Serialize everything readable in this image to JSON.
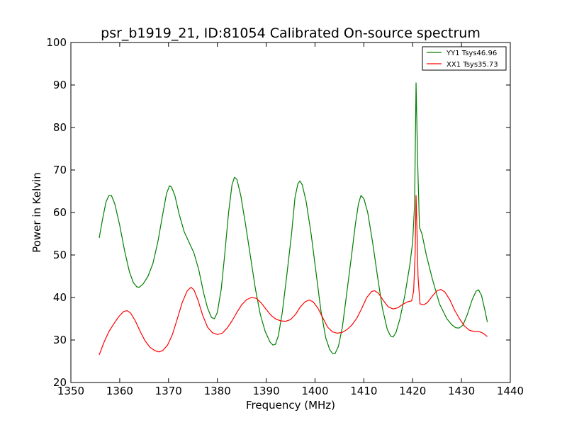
{
  "chart_data": {
    "type": "line",
    "title": "psr_b1919_21, ID:81054 Calibrated On-source spectrum",
    "xlabel": "Frequency (MHz)",
    "ylabel": "Power in Kelvin",
    "xlim": [
      1350,
      1440
    ],
    "ylim": [
      20,
      100
    ],
    "xticks": [
      1350,
      1360,
      1370,
      1380,
      1390,
      1400,
      1410,
      1420,
      1430,
      1440
    ],
    "yticks": [
      20,
      30,
      40,
      50,
      60,
      70,
      80,
      90,
      100
    ],
    "grid": false,
    "legend_position": "top-right",
    "series": [
      {
        "name": "YY1 Tsys46.96",
        "color": "#008000",
        "points": [
          [
            1355.8,
            54.0
          ],
          [
            1356.5,
            58.5
          ],
          [
            1357.2,
            62.5
          ],
          [
            1357.8,
            64.0
          ],
          [
            1358.3,
            64.0
          ],
          [
            1359.0,
            62.0
          ],
          [
            1360.0,
            57.0
          ],
          [
            1361.0,
            51.0
          ],
          [
            1362.0,
            46.0
          ],
          [
            1362.8,
            43.5
          ],
          [
            1363.5,
            42.5
          ],
          [
            1364.0,
            42.4
          ],
          [
            1364.8,
            43.2
          ],
          [
            1365.8,
            45.0
          ],
          [
            1366.8,
            48.0
          ],
          [
            1367.8,
            53.0
          ],
          [
            1368.8,
            59.5
          ],
          [
            1369.6,
            64.5
          ],
          [
            1370.2,
            66.3
          ],
          [
            1370.6,
            66.0
          ],
          [
            1371.3,
            64.0
          ],
          [
            1372.2,
            59.5
          ],
          [
            1373.2,
            55.5
          ],
          [
            1374.2,
            53.0
          ],
          [
            1375.2,
            50.5
          ],
          [
            1376.2,
            46.5
          ],
          [
            1377.2,
            41.0
          ],
          [
            1378.0,
            37.5
          ],
          [
            1378.8,
            35.3
          ],
          [
            1379.4,
            35.0
          ],
          [
            1380.0,
            36.5
          ],
          [
            1380.8,
            42.0
          ],
          [
            1381.5,
            50.0
          ],
          [
            1382.3,
            60.0
          ],
          [
            1383.0,
            66.5
          ],
          [
            1383.5,
            68.3
          ],
          [
            1384.0,
            67.8
          ],
          [
            1384.8,
            64.0
          ],
          [
            1385.8,
            57.0
          ],
          [
            1386.8,
            49.5
          ],
          [
            1387.8,
            42.0
          ],
          [
            1388.8,
            36.0
          ],
          [
            1389.8,
            32.0
          ],
          [
            1390.8,
            29.5
          ],
          [
            1391.4,
            28.8
          ],
          [
            1391.9,
            29.0
          ],
          [
            1392.5,
            31.0
          ],
          [
            1393.3,
            36.5
          ],
          [
            1394.2,
            45.0
          ],
          [
            1395.2,
            55.0
          ],
          [
            1395.9,
            63.5
          ],
          [
            1396.5,
            66.8
          ],
          [
            1396.9,
            67.4
          ],
          [
            1397.4,
            66.5
          ],
          [
            1398.2,
            62.5
          ],
          [
            1399.2,
            55.0
          ],
          [
            1400.2,
            46.0
          ],
          [
            1401.2,
            37.0
          ],
          [
            1402.2,
            30.5
          ],
          [
            1403.0,
            27.8
          ],
          [
            1403.6,
            26.8
          ],
          [
            1404.1,
            26.8
          ],
          [
            1404.8,
            28.5
          ],
          [
            1405.6,
            33.0
          ],
          [
            1406.5,
            41.0
          ],
          [
            1407.5,
            50.0
          ],
          [
            1408.3,
            57.5
          ],
          [
            1408.9,
            62.0
          ],
          [
            1409.4,
            64.0
          ],
          [
            1410.0,
            63.3
          ],
          [
            1410.8,
            60.0
          ],
          [
            1411.8,
            53.0
          ],
          [
            1412.8,
            45.0
          ],
          [
            1413.8,
            37.5
          ],
          [
            1414.8,
            32.5
          ],
          [
            1415.5,
            30.9
          ],
          [
            1416.0,
            30.7
          ],
          [
            1416.6,
            31.8
          ],
          [
            1417.4,
            35.0
          ],
          [
            1418.4,
            40.5
          ],
          [
            1419.4,
            47.5
          ],
          [
            1420.0,
            53.0
          ],
          [
            1420.4,
            62.0
          ],
          [
            1420.7,
            90.5
          ],
          [
            1421.0,
            73.0
          ],
          [
            1421.4,
            56.5
          ],
          [
            1421.9,
            55.0
          ],
          [
            1422.8,
            50.0
          ],
          [
            1424.0,
            44.5
          ],
          [
            1425.5,
            38.5
          ],
          [
            1427.0,
            35.0
          ],
          [
            1428.0,
            33.6
          ],
          [
            1428.8,
            32.9
          ],
          [
            1429.5,
            32.8
          ],
          [
            1430.3,
            33.5
          ],
          [
            1431.2,
            36.0
          ],
          [
            1432.2,
            39.5
          ],
          [
            1433.0,
            41.5
          ],
          [
            1433.5,
            41.8
          ],
          [
            1434.1,
            40.5
          ],
          [
            1434.8,
            37.0
          ],
          [
            1435.3,
            34.2
          ]
        ]
      },
      {
        "name": "XX1 Tsys35.73",
        "color": "#ff0000",
        "points": [
          [
            1355.8,
            26.5
          ],
          [
            1356.8,
            29.5
          ],
          [
            1357.8,
            32.0
          ],
          [
            1358.8,
            33.8
          ],
          [
            1359.8,
            35.5
          ],
          [
            1360.8,
            36.7
          ],
          [
            1361.5,
            36.9
          ],
          [
            1362.2,
            36.4
          ],
          [
            1363.2,
            34.5
          ],
          [
            1364.2,
            32.0
          ],
          [
            1365.2,
            29.8
          ],
          [
            1366.2,
            28.3
          ],
          [
            1367.2,
            27.5
          ],
          [
            1368.0,
            27.2
          ],
          [
            1368.8,
            27.5
          ],
          [
            1369.8,
            28.8
          ],
          [
            1370.8,
            31.3
          ],
          [
            1371.8,
            35.0
          ],
          [
            1372.8,
            38.8
          ],
          [
            1373.8,
            41.5
          ],
          [
            1374.6,
            42.4
          ],
          [
            1375.2,
            41.8
          ],
          [
            1376.0,
            39.5
          ],
          [
            1377.0,
            35.8
          ],
          [
            1378.0,
            33.0
          ],
          [
            1379.0,
            31.7
          ],
          [
            1380.0,
            31.3
          ],
          [
            1381.0,
            31.6
          ],
          [
            1382.0,
            32.8
          ],
          [
            1383.0,
            34.5
          ],
          [
            1384.0,
            36.5
          ],
          [
            1385.0,
            38.3
          ],
          [
            1386.0,
            39.5
          ],
          [
            1387.0,
            40.0
          ],
          [
            1388.0,
            39.8
          ],
          [
            1389.0,
            38.7
          ],
          [
            1390.0,
            37.2
          ],
          [
            1391.0,
            35.8
          ],
          [
            1392.0,
            34.9
          ],
          [
            1393.0,
            34.5
          ],
          [
            1394.0,
            34.4
          ],
          [
            1395.0,
            34.8
          ],
          [
            1396.0,
            36.0
          ],
          [
            1397.0,
            37.8
          ],
          [
            1398.0,
            39.0
          ],
          [
            1398.8,
            39.4
          ],
          [
            1399.6,
            39.0
          ],
          [
            1400.6,
            37.5
          ],
          [
            1401.6,
            35.2
          ],
          [
            1402.6,
            33.0
          ],
          [
            1403.6,
            31.9
          ],
          [
            1404.6,
            31.6
          ],
          [
            1405.6,
            31.8
          ],
          [
            1406.6,
            32.5
          ],
          [
            1407.6,
            33.6
          ],
          [
            1408.6,
            35.2
          ],
          [
            1409.6,
            37.5
          ],
          [
            1410.6,
            40.0
          ],
          [
            1411.6,
            41.4
          ],
          [
            1412.2,
            41.6
          ],
          [
            1413.0,
            41.0
          ],
          [
            1414.0,
            39.3
          ],
          [
            1415.0,
            37.8
          ],
          [
            1416.0,
            37.3
          ],
          [
            1417.0,
            37.6
          ],
          [
            1418.0,
            38.4
          ],
          [
            1419.0,
            39.0
          ],
          [
            1419.8,
            39.2
          ],
          [
            1420.2,
            41.5
          ],
          [
            1420.5,
            50.0
          ],
          [
            1420.7,
            64.0
          ],
          [
            1420.9,
            55.0
          ],
          [
            1421.1,
            45.0
          ],
          [
            1421.5,
            38.5
          ],
          [
            1422.3,
            38.3
          ],
          [
            1423.0,
            38.8
          ],
          [
            1424.0,
            40.3
          ],
          [
            1425.0,
            41.6
          ],
          [
            1425.8,
            41.9
          ],
          [
            1426.6,
            41.3
          ],
          [
            1427.6,
            39.5
          ],
          [
            1428.6,
            37.0
          ],
          [
            1429.6,
            35.0
          ],
          [
            1430.6,
            33.3
          ],
          [
            1431.6,
            32.3
          ],
          [
            1432.6,
            32.0
          ],
          [
            1433.6,
            32.0
          ],
          [
            1434.4,
            31.6
          ],
          [
            1435.3,
            30.8
          ]
        ]
      }
    ]
  }
}
